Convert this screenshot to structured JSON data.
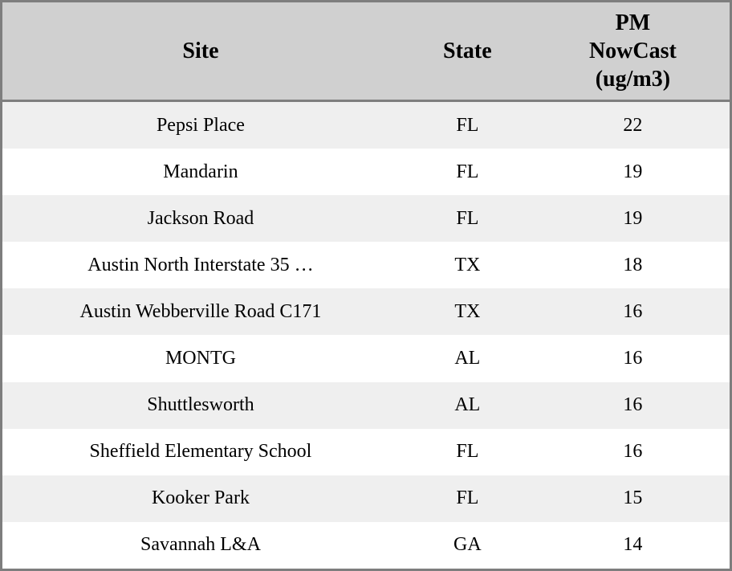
{
  "chart_data": {
    "type": "table",
    "columns": [
      "Site",
      "State",
      "PM NowCast (ug/m3)"
    ],
    "header": {
      "site": "Site",
      "state": "State",
      "pm_lines": [
        "PM",
        "NowCast",
        "(ug/m3)"
      ]
    },
    "rows": [
      {
        "site": "Pepsi Place",
        "state": "FL",
        "pm_nowcast": "22"
      },
      {
        "site": "Mandarin",
        "state": "FL",
        "pm_nowcast": "19"
      },
      {
        "site": "Jackson Road",
        "state": "FL",
        "pm_nowcast": "19"
      },
      {
        "site": "Austin North Interstate 35 …",
        "state": "TX",
        "pm_nowcast": "18"
      },
      {
        "site": "Austin Webberville Road C171",
        "state": "TX",
        "pm_nowcast": "16"
      },
      {
        "site": "MONTG",
        "state": "AL",
        "pm_nowcast": "16"
      },
      {
        "site": "Shuttlesworth",
        "state": "AL",
        "pm_nowcast": "16"
      },
      {
        "site": "Sheffield Elementary School",
        "state": "FL",
        "pm_nowcast": "16"
      },
      {
        "site": "Kooker Park",
        "state": "FL",
        "pm_nowcast": "15"
      },
      {
        "site": "Savannah L&A",
        "state": "GA",
        "pm_nowcast": "14"
      }
    ],
    "layout": {
      "grid": "off",
      "row_striping": "on"
    }
  },
  "colors": {
    "header_bg": "#d0d0d0",
    "row_alt_bg": "#efefef",
    "row_bg": "#ffffff",
    "border": "#7e7e7e",
    "text": "#000000"
  }
}
